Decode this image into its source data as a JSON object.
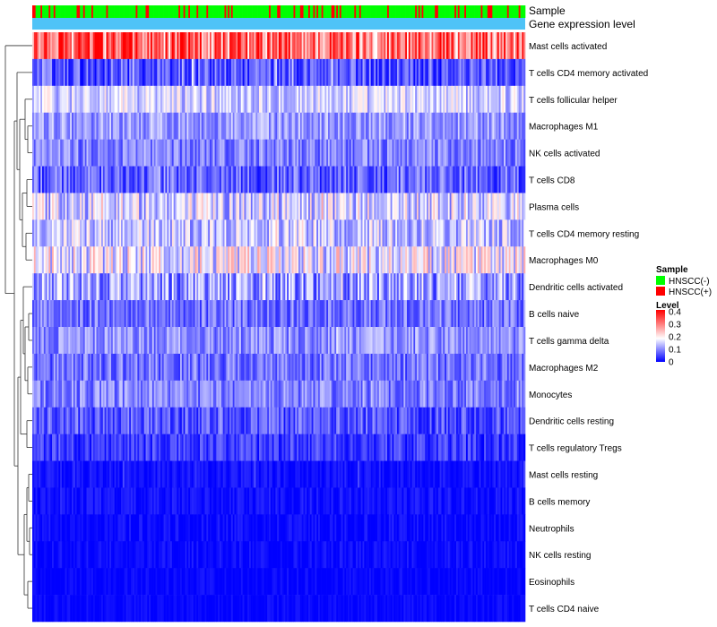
{
  "chart_data": {
    "type": "heatmap",
    "annotation_tracks": [
      "Sample",
      "Gene expression level"
    ],
    "rows": [
      {
        "name": "Mast cells activated",
        "base": 0.3,
        "var": 0.12,
        "spike": 0.55
      },
      {
        "name": "T cells CD4 memory activated",
        "base": 0.06,
        "var": 0.06,
        "spike": 0.06
      },
      {
        "name": "T cells follicular helper",
        "base": 0.15,
        "var": 0.06,
        "spike": 0.02
      },
      {
        "name": "Macrophages M1",
        "base": 0.11,
        "var": 0.05,
        "spike": 0.01
      },
      {
        "name": "NK cells activated",
        "base": 0.09,
        "var": 0.05,
        "spike": 0.01
      },
      {
        "name": "T cells CD8",
        "base": 0.07,
        "var": 0.06,
        "spike": 0.02
      },
      {
        "name": "Plasma cells",
        "base": 0.15,
        "var": 0.08,
        "spike": 0.05
      },
      {
        "name": "T cells CD4 memory resting",
        "base": 0.14,
        "var": 0.07,
        "spike": 0.03
      },
      {
        "name": "Macrophages M0",
        "base": 0.17,
        "var": 0.09,
        "spike": 0.04
      },
      {
        "name": "Dendritic cells activated",
        "base": 0.11,
        "var": 0.08,
        "spike": 0.03
      },
      {
        "name": "B cells naive",
        "base": 0.08,
        "var": 0.05,
        "spike": 0.01
      },
      {
        "name": "T cells gamma delta",
        "base": 0.1,
        "var": 0.05,
        "spike": 0.02
      },
      {
        "name": "Macrophages M2",
        "base": 0.08,
        "var": 0.05,
        "spike": 0.01
      },
      {
        "name": "Monocytes",
        "base": 0.09,
        "var": 0.05,
        "spike": 0.01
      },
      {
        "name": "Dendritic cells resting",
        "base": 0.06,
        "var": 0.05,
        "spike": 0.01
      },
      {
        "name": "T cells regulatory  Tregs",
        "base": 0.04,
        "var": 0.04,
        "spike": 0.01
      },
      {
        "name": "Mast cells resting",
        "base": 0.01,
        "var": 0.02,
        "spike": 0.03
      },
      {
        "name": "B cells memory",
        "base": 0.01,
        "var": 0.02,
        "spike": 0.02
      },
      {
        "name": "Neutrophils",
        "base": 0.005,
        "var": 0.02,
        "spike": 0.01
      },
      {
        "name": "NK cells resting",
        "base": 0.005,
        "var": 0.02,
        "spike": 0.01
      },
      {
        "name": "Eosinophils",
        "base": 0.003,
        "var": 0.015,
        "spike": 0.01
      },
      {
        "name": "T cells CD4 naive",
        "base": 0.003,
        "var": 0.015,
        "spike": 0.01
      }
    ],
    "n_samples": 300,
    "positive_fraction": 0.18,
    "legend": {
      "sample_title": "Sample",
      "sample_entries": [
        {
          "label": "HNSCC(-)",
          "color": "#00ff00"
        },
        {
          "label": "HNSCC(+)",
          "color": "#ff0000"
        }
      ],
      "level_title": "Level",
      "level_ticks": [
        "0.4",
        "0.3",
        "0.2",
        "0.1",
        "0"
      ],
      "level_range": [
        0,
        0.4
      ],
      "placement": "right"
    },
    "colors": {
      "low": "#0000ff",
      "mid": "#ffffff",
      "high": "#ff0000",
      "sample_negative": "#00ff00",
      "sample_positive": "#ff0000",
      "expression_track": "#4fc3f7"
    }
  }
}
